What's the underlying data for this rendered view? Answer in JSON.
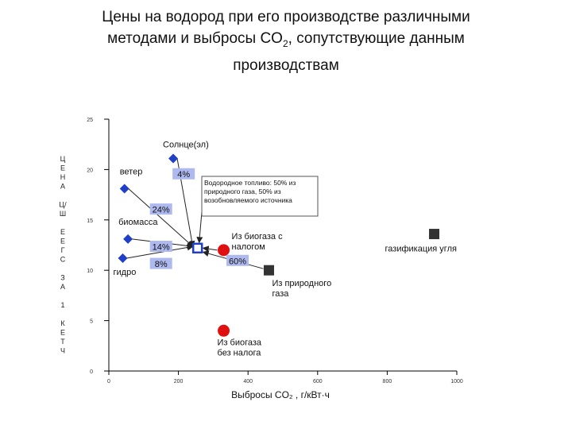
{
  "slide": {
    "title_line1": "Цены на водород при его производстве различными",
    "title_line2_a": "методами и выбросы CO",
    "title_line2_sub": "2",
    "title_line2_b": ",  сопутствующие данным",
    "title_line3": "производствам"
  },
  "chart_data": {
    "type": "scatter",
    "xlabel": "Выбросы CO₂ , г/кВт·ч",
    "ylabel_letters": [
      "Ц",
      "Е",
      "Н",
      "А",
      "",
      "Ц/",
      "Ш",
      "",
      "Е",
      "Е",
      "Г",
      "С",
      "",
      "З",
      "А",
      "",
      "1",
      "",
      "К",
      "Е",
      "Т",
      "Ч"
    ],
    "xlim": [
      0,
      1000
    ],
    "ylim": [
      0,
      25
    ],
    "x_ticks": [
      0,
      200,
      400,
      600,
      800,
      1000
    ],
    "x_tick_labels": [
      "0",
      "200",
      "400",
      "600",
      "800",
      "1000"
    ],
    "y_ticks": [
      0,
      5,
      10,
      15,
      20,
      25
    ],
    "y_tick_labels": [
      "0",
      "5",
      "10",
      "15",
      "20",
      "25"
    ],
    "grid": false,
    "series": [
      {
        "marker": "diamond",
        "color": "#1f3fc8",
        "points": [
          {
            "label": "Солнце(эл)",
            "x": 185,
            "y": 21.1
          },
          {
            "label": "ветер",
            "x": 45,
            "y": 18.1
          },
          {
            "label": "биомасса",
            "x": 55,
            "y": 13.1
          },
          {
            "label": "гидро",
            "x": 40,
            "y": 11.2
          }
        ]
      },
      {
        "marker": "circle",
        "color": "#e01010",
        "points": [
          {
            "label": "Из биогаза с налогом",
            "x": 330,
            "y": 12.0
          },
          {
            "label": "Из биогаза без налога",
            "x": 330,
            "y": 4.0
          }
        ]
      },
      {
        "marker": "square",
        "color": "#333333",
        "points": [
          {
            "label": "Из природного газа",
            "x": 460,
            "y": 10.0
          },
          {
            "label": "газификация угля",
            "x": 935,
            "y": 13.6
          }
        ]
      },
      {
        "marker": "open-square",
        "color": "#1f3fc8",
        "points": [
          {
            "label": "",
            "x": 255,
            "y": 12.2
          }
        ]
      }
    ],
    "percent_labels": [
      {
        "text": "4%",
        "x": 215,
        "y": 19.5
      },
      {
        "text": "24%",
        "x": 150,
        "y": 16.0
      },
      {
        "text": "14%",
        "x": 150,
        "y": 12.3
      },
      {
        "text": "8%",
        "x": 150,
        "y": 10.6
      },
      {
        "text": "60%",
        "x": 370,
        "y": 10.9
      }
    ],
    "annotation": "Водородное топливо: 50% из природного газа, 50% из возобновляемого источника"
  }
}
